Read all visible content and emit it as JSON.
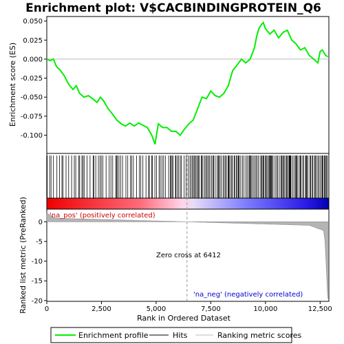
{
  "chart_data": {
    "type": "line",
    "title": "Enrichment plot: V$CACBINDINGPROTEIN_Q6",
    "xlabel": "Rank in Ordered Dataset",
    "ylabel_top": "Enrichment score (ES)",
    "ylabel_bottom": "Ranked list metric (PreRanked)",
    "xlim": [
      0,
      12900
    ],
    "x_ticks": [
      0,
      2500,
      5000,
      7500,
      10000,
      12500
    ],
    "x_tick_labels": [
      "0",
      "2,500",
      "5,000",
      "7,500",
      "10,000",
      "12,500"
    ],
    "es_ylim": [
      -0.124,
      0.056
    ],
    "es_ticks": [
      0.05,
      0.025,
      0.0,
      -0.025,
      -0.05,
      -0.075,
      -0.1
    ],
    "es_tick_labels": [
      "0.050",
      "0.025",
      "0.000",
      "-0.025",
      "-0.050",
      "-0.075",
      "-0.100"
    ],
    "metric_ylim": [
      -20.2,
      3.2
    ],
    "metric_ticks": [
      0,
      -5,
      -10,
      -15,
      -20
    ],
    "metric_tick_labels": [
      "0",
      "-5",
      "-10",
      "-15",
      "-20"
    ],
    "zero_cross_rank": 6412,
    "annotations": {
      "pos_label": "'na_pos' (positively correlated)",
      "neg_label": "'na_neg' (negatively correlated)",
      "zero_cross": "Zero cross at 6412"
    },
    "series": [
      {
        "name": "Enrichment profile",
        "color": "#00ee00",
        "x": [
          0,
          150,
          300,
          450,
          600,
          800,
          1000,
          1200,
          1350,
          1500,
          1700,
          1900,
          2100,
          2300,
          2450,
          2600,
          2800,
          3000,
          3200,
          3400,
          3600,
          3800,
          4000,
          4200,
          4400,
          4600,
          4800,
          4950,
          5100,
          5300,
          5500,
          5700,
          5900,
          6100,
          6300,
          6500,
          6700,
          6900,
          7100,
          7300,
          7500,
          7700,
          7900,
          8100,
          8300,
          8500,
          8700,
          8900,
          9100,
          9300,
          9500,
          9600,
          9700,
          9800,
          9900,
          10000,
          10200,
          10400,
          10600,
          10800,
          11000,
          11200,
          11400,
          11600,
          11800,
          12000,
          12200,
          12400,
          12500,
          12600,
          12750,
          12850
        ],
        "values": [
          0.0,
          -0.002,
          0.0,
          -0.01,
          -0.014,
          -0.022,
          -0.033,
          -0.04,
          -0.035,
          -0.045,
          -0.05,
          -0.048,
          -0.052,
          -0.057,
          -0.05,
          -0.055,
          -0.065,
          -0.072,
          -0.08,
          -0.085,
          -0.088,
          -0.084,
          -0.088,
          -0.084,
          -0.087,
          -0.09,
          -0.1,
          -0.112,
          -0.085,
          -0.09,
          -0.09,
          -0.095,
          -0.095,
          -0.1,
          -0.092,
          -0.085,
          -0.08,
          -0.065,
          -0.05,
          -0.052,
          -0.042,
          -0.048,
          -0.05,
          -0.045,
          -0.035,
          -0.015,
          -0.008,
          0.0,
          -0.005,
          0.0,
          0.015,
          0.03,
          0.04,
          0.045,
          0.048,
          0.04,
          0.033,
          0.038,
          0.028,
          0.035,
          0.038,
          0.025,
          0.02,
          0.012,
          0.015,
          0.005,
          0.0,
          -0.005,
          0.01,
          0.012,
          0.005,
          0.003
        ]
      }
    ],
    "hits_series_name": "Hits",
    "metric_series_name": "Ranking metric scores",
    "legend": [
      "Enrichment profile",
      "Hits",
      "Ranking metric scores"
    ]
  }
}
